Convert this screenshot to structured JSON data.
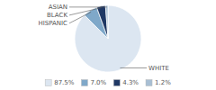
{
  "chart_data": {
    "type": "pie",
    "categories": [
      "WHITE",
      "HISPANIC",
      "BLACK",
      "ASIAN"
    ],
    "values": [
      87.5,
      7.0,
      4.3,
      1.2
    ],
    "value_labels": [
      "87.5%",
      "7.0%",
      "4.3%",
      "1.2%"
    ],
    "colors": [
      "#dce6f1",
      "#7fa8c9",
      "#1f3864",
      "#a8bfd4"
    ],
    "legend": "bottom"
  }
}
